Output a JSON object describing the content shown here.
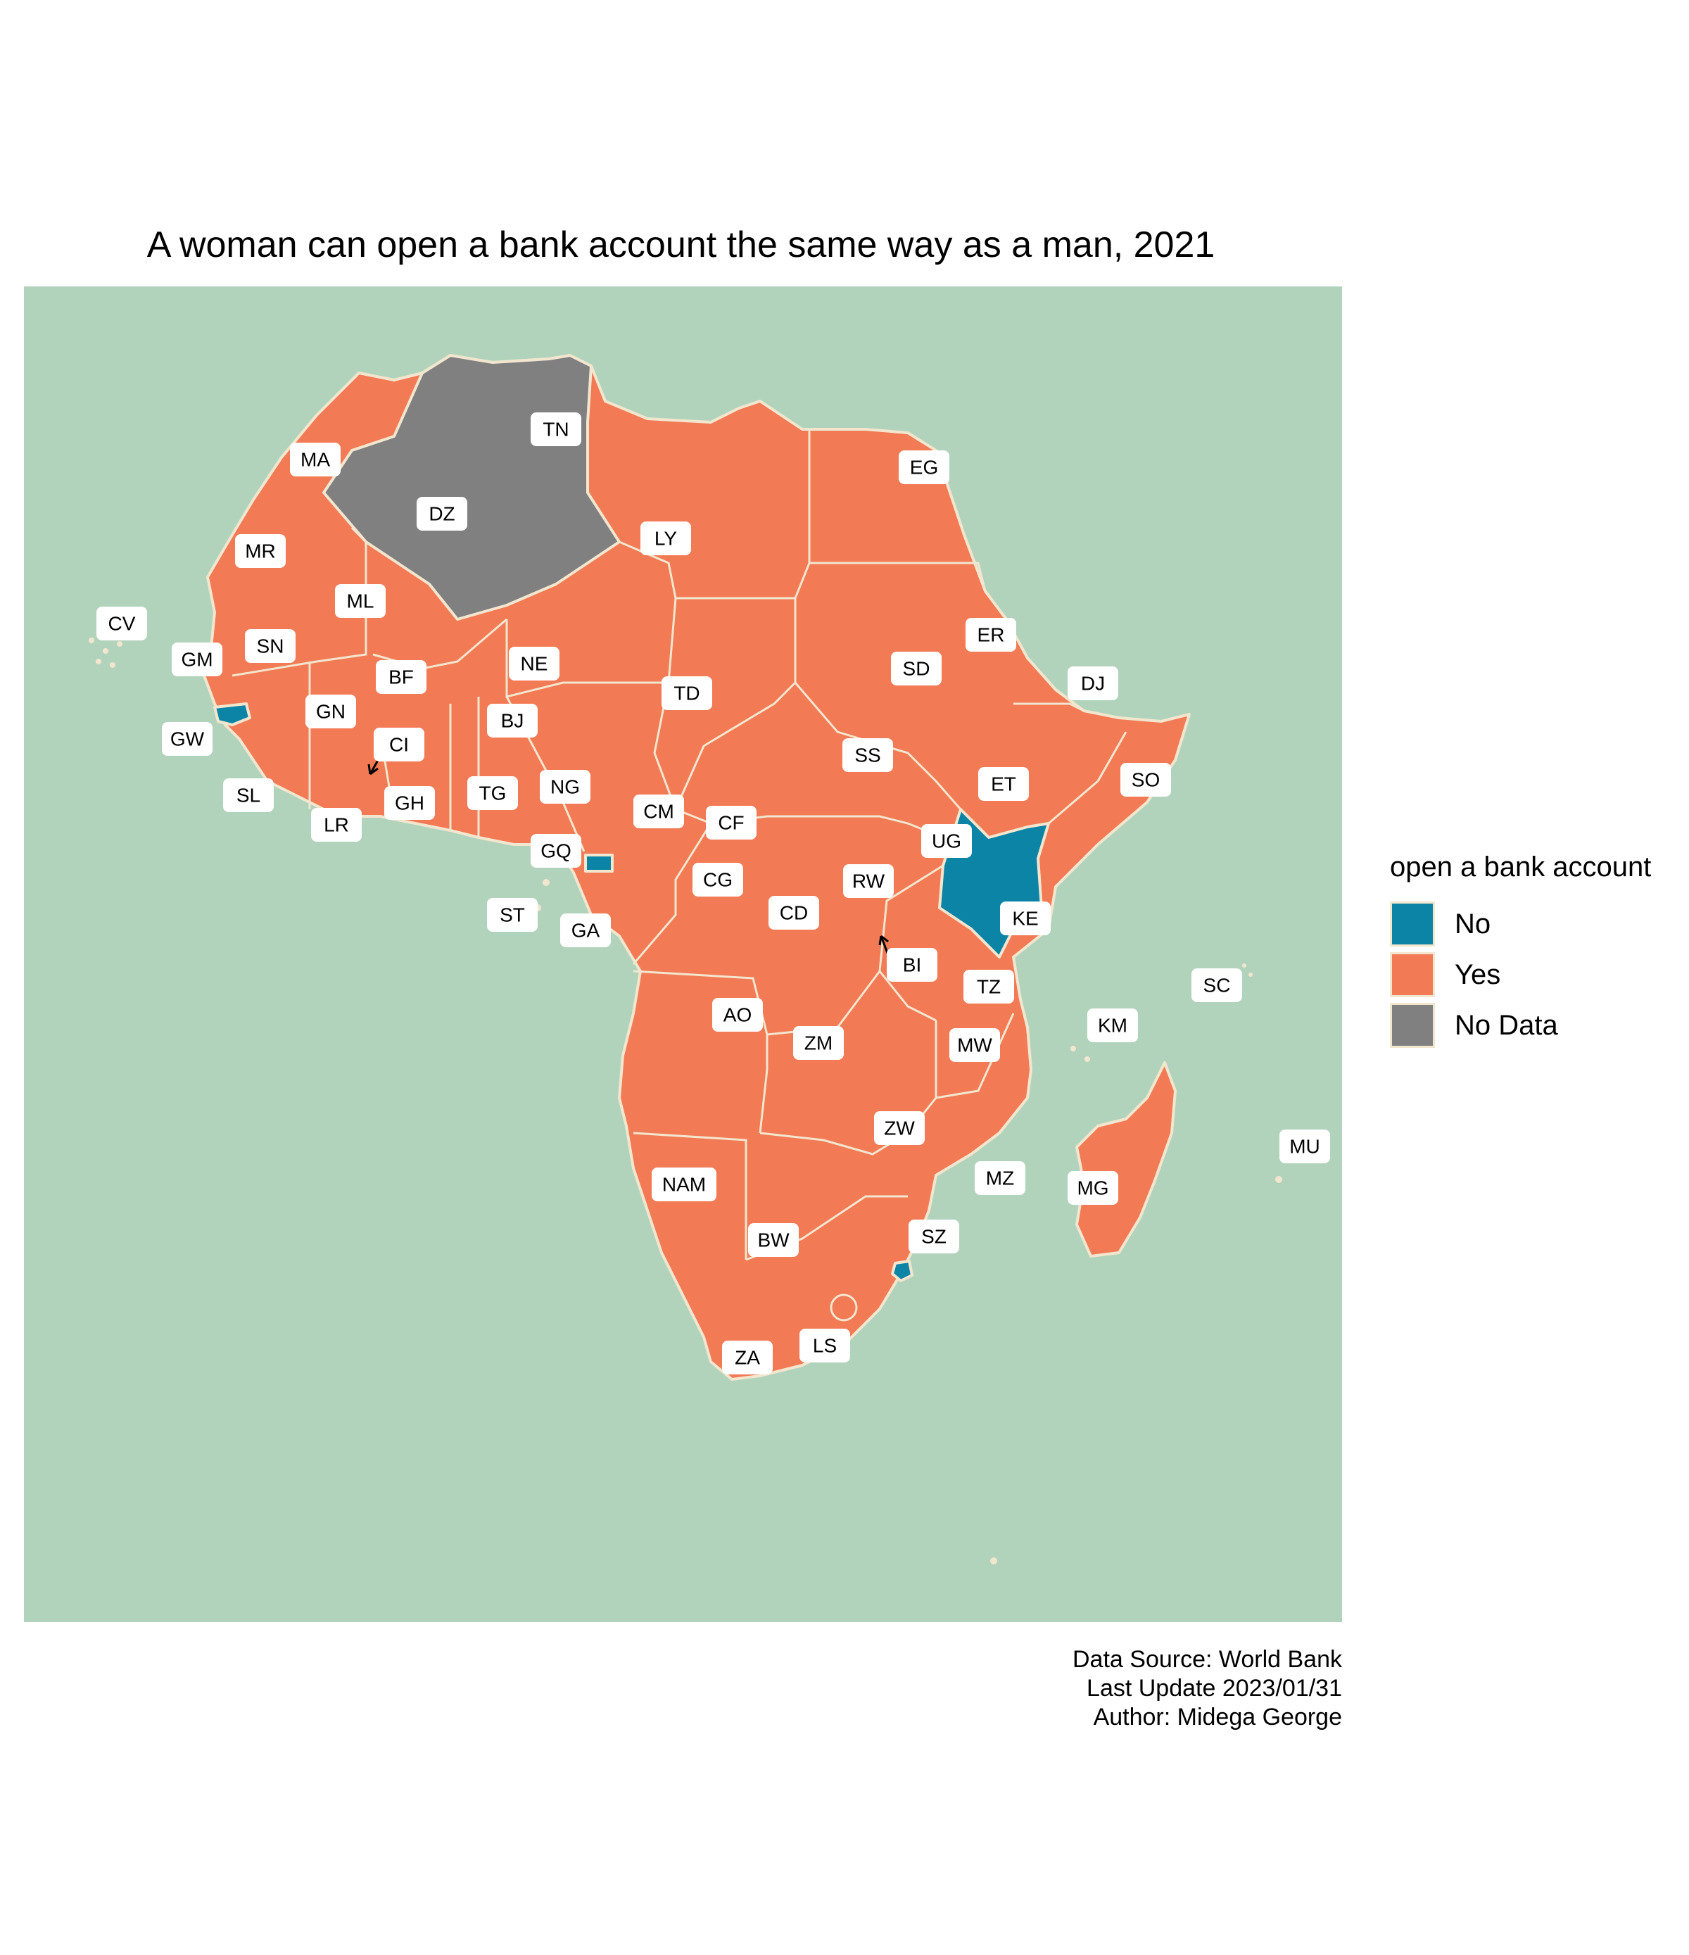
{
  "title": "A woman can open a bank account the same way as a man, 2021",
  "colors": {
    "ocean": "#b2d3bb",
    "no": "#0b84a5",
    "yes": "#f27a55",
    "no_data": "#808080",
    "border": "#f3e6cf"
  },
  "legend": {
    "title": "open a bank account",
    "items": [
      {
        "label": "No",
        "color": "#0b84a5"
      },
      {
        "label": "Yes",
        "color": "#f27a55"
      },
      {
        "label": "No Data",
        "color": "#808080"
      }
    ]
  },
  "caption": [
    "Data Source: World Bank",
    "Last Update 2023/01/31",
    "Author: Midega George"
  ],
  "countries": [
    {
      "code": "TN",
      "status": "Yes"
    },
    {
      "code": "MA",
      "status": "Yes"
    },
    {
      "code": "EG",
      "status": "Yes"
    },
    {
      "code": "DZ",
      "status": "No Data"
    },
    {
      "code": "LY",
      "status": "Yes"
    },
    {
      "code": "MR",
      "status": "Yes"
    },
    {
      "code": "ML",
      "status": "Yes"
    },
    {
      "code": "CV",
      "status": "Yes"
    },
    {
      "code": "ER",
      "status": "Yes"
    },
    {
      "code": "GM",
      "status": "Yes"
    },
    {
      "code": "SN",
      "status": "Yes"
    },
    {
      "code": "SD",
      "status": "Yes"
    },
    {
      "code": "NE",
      "status": "Yes"
    },
    {
      "code": "DJ",
      "status": "Yes"
    },
    {
      "code": "BF",
      "status": "Yes"
    },
    {
      "code": "TD",
      "status": "Yes"
    },
    {
      "code": "GN",
      "status": "Yes"
    },
    {
      "code": "BJ",
      "status": "Yes"
    },
    {
      "code": "GW",
      "status": "No"
    },
    {
      "code": "CI",
      "status": "Yes"
    },
    {
      "code": "SS",
      "status": "Yes"
    },
    {
      "code": "SO",
      "status": "Yes"
    },
    {
      "code": "ET",
      "status": "Yes"
    },
    {
      "code": "SL",
      "status": "Yes"
    },
    {
      "code": "TG",
      "status": "Yes"
    },
    {
      "code": "NG",
      "status": "Yes"
    },
    {
      "code": "GH",
      "status": "Yes"
    },
    {
      "code": "CM",
      "status": "Yes"
    },
    {
      "code": "LR",
      "status": "Yes"
    },
    {
      "code": "CF",
      "status": "Yes"
    },
    {
      "code": "UG",
      "status": "Yes"
    },
    {
      "code": "GQ",
      "status": "No"
    },
    {
      "code": "RW",
      "status": "Yes"
    },
    {
      "code": "CG",
      "status": "Yes"
    },
    {
      "code": "CD",
      "status": "Yes"
    },
    {
      "code": "KE",
      "status": "No"
    },
    {
      "code": "ST",
      "status": "Yes"
    },
    {
      "code": "GA",
      "status": "Yes"
    },
    {
      "code": "BI",
      "status": "Yes"
    },
    {
      "code": "SC",
      "status": "Yes"
    },
    {
      "code": "TZ",
      "status": "Yes"
    },
    {
      "code": "AO",
      "status": "Yes"
    },
    {
      "code": "KM",
      "status": "Yes"
    },
    {
      "code": "ZM",
      "status": "Yes"
    },
    {
      "code": "MW",
      "status": "Yes"
    },
    {
      "code": "ZW",
      "status": "Yes"
    },
    {
      "code": "MU",
      "status": "Yes"
    },
    {
      "code": "NAM",
      "status": "Yes"
    },
    {
      "code": "MZ",
      "status": "Yes"
    },
    {
      "code": "MG",
      "status": "Yes"
    },
    {
      "code": "SZ",
      "status": "No"
    },
    {
      "code": "BW",
      "status": "Yes"
    },
    {
      "code": "LS",
      "status": "Yes"
    },
    {
      "code": "ZA",
      "status": "Yes"
    }
  ]
}
